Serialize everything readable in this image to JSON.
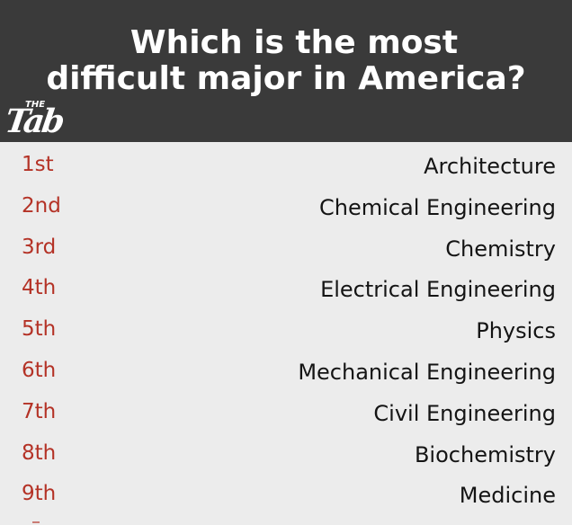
{
  "header": {
    "title_line_1": "Which is the most",
    "title_line_2": "difficult major in America?",
    "logo": {
      "small_text": "THE",
      "main_text": "Tab"
    }
  },
  "colors": {
    "header_background": "#3a3a3a",
    "page_background": "#ececec",
    "rank_text": "#b43226",
    "major_text": "#141414",
    "title_text": "#ffffff"
  },
  "rankings": [
    {
      "rank": "1st",
      "major": "Architecture"
    },
    {
      "rank": "2nd",
      "major": "Chemical Engineering"
    },
    {
      "rank": "3rd",
      "major": "Chemistry"
    },
    {
      "rank": "4th",
      "major": "Electrical Engineering"
    },
    {
      "rank": "5th",
      "major": "Physics"
    },
    {
      "rank": "6th",
      "major": "Mechanical Engineering"
    },
    {
      "rank": "7th",
      "major": "Civil Engineering"
    },
    {
      "rank": "8th",
      "major": "Biochemistry"
    },
    {
      "rank": "9th",
      "major": "Medicine"
    }
  ]
}
